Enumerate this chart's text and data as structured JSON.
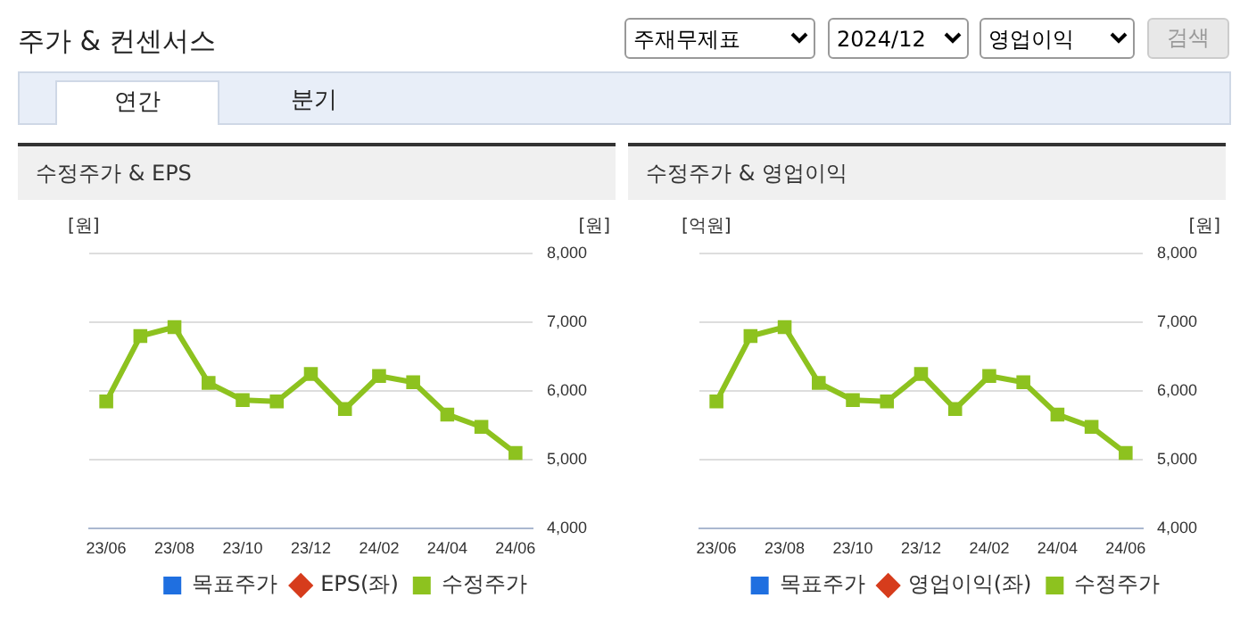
{
  "chart_data": [
    {
      "type": "line",
      "title": "수정주가 & EPS",
      "ylabel": "[원]",
      "y2label": "[원]",
      "annotations": [
        "주가 & 컨센서스",
        "주재무제표",
        "2024/12",
        "영업이익",
        "검색",
        "연간",
        "분기"
      ],
      "categories": [
        "23/06",
        null,
        "23/08",
        null,
        "23/10",
        null,
        "23/12",
        null,
        "24/02",
        null,
        "24/04",
        null,
        "24/06"
      ],
      "series": [
        {
          "name": "목표주가",
          "color": "#1f6fe0",
          "marker": "square",
          "values": [
            null,
            null,
            null,
            null,
            null,
            null,
            null,
            null,
            null,
            null,
            null,
            null,
            null
          ]
        },
        {
          "name": "EPS(좌)",
          "color": "#d63c1c",
          "marker": "diamond",
          "values": [
            null,
            null,
            null,
            null,
            null,
            null,
            null,
            null,
            null,
            null,
            null,
            null,
            null
          ]
        },
        {
          "name": "수정주가",
          "color": "#8dc21f",
          "marker": "square",
          "axis": "y2",
          "values": [
            5850,
            6800,
            6930,
            6120,
            5870,
            5850,
            6250,
            5740,
            6220,
            6130,
            5660,
            5480,
            5100
          ]
        }
      ],
      "y2lim": [
        4000,
        8000
      ],
      "y2ticks": [
        {
          "value": 4000,
          "label": "4,000"
        },
        {
          "value": 5000,
          "label": "5,000"
        },
        {
          "value": 6000,
          "label": "6,000"
        },
        {
          "value": 7000,
          "label": "7,000"
        },
        {
          "value": 8000,
          "label": "8,000"
        }
      ],
      "grid": "y",
      "legend": "bottom"
    },
    {
      "type": "line",
      "title": "수정주가 & 영업이익",
      "ylabel": "[억원]",
      "y2label": "[원]",
      "categories": [
        "23/06",
        null,
        "23/08",
        null,
        "23/10",
        null,
        "23/12",
        null,
        "24/02",
        null,
        "24/04",
        null,
        "24/06"
      ],
      "series": [
        {
          "name": "목표주가",
          "color": "#1f6fe0",
          "marker": "square",
          "values": [
            null,
            null,
            null,
            null,
            null,
            null,
            null,
            null,
            null,
            null,
            null,
            null,
            null
          ]
        },
        {
          "name": "영업이익(좌)",
          "color": "#d63c1c",
          "marker": "diamond",
          "values": [
            null,
            null,
            null,
            null,
            null,
            null,
            null,
            null,
            null,
            null,
            null,
            null,
            null
          ]
        },
        {
          "name": "수정주가",
          "color": "#8dc21f",
          "marker": "square",
          "axis": "y2",
          "values": [
            5850,
            6800,
            6930,
            6120,
            5870,
            5850,
            6250,
            5740,
            6220,
            6130,
            5660,
            5480,
            5100
          ]
        }
      ],
      "y2lim": [
        4000,
        8000
      ],
      "y2ticks": [
        {
          "value": 4000,
          "label": "4,000"
        },
        {
          "value": 5000,
          "label": "5,000"
        },
        {
          "value": 6000,
          "label": "6,000"
        },
        {
          "value": 7000,
          "label": "7,000"
        },
        {
          "value": 8000,
          "label": "8,000"
        }
      ],
      "grid": "y",
      "legend": "bottom"
    }
  ]
}
